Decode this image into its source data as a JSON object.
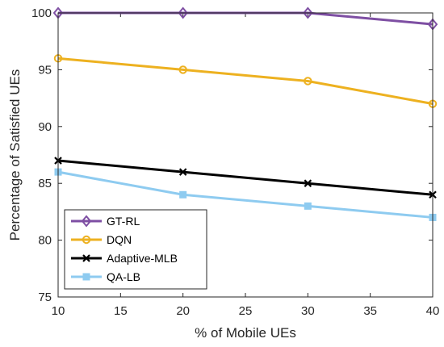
{
  "chart_data": {
    "type": "line",
    "xlabel": "% of Mobile UEs",
    "ylabel": "Percentage of Satisfied UEs",
    "x": [
      10,
      20,
      30,
      40
    ],
    "xlim": [
      10,
      40
    ],
    "ylim": [
      75,
      100
    ],
    "xticks": [
      "10",
      "15",
      "20",
      "25",
      "30",
      "35",
      "40"
    ],
    "yticks": [
      "75",
      "80",
      "85",
      "90",
      "95",
      "100"
    ],
    "grid": false,
    "legend_position": "bottom-left",
    "series": [
      {
        "name": "GT-RL",
        "values": [
          100,
          100,
          100,
          99
        ],
        "color": "#7e4fa3",
        "marker": "diamond"
      },
      {
        "name": "DQN",
        "values": [
          96,
          95,
          94,
          92
        ],
        "color": "#edb120",
        "marker": "circle"
      },
      {
        "name": "Adaptive-MLB",
        "values": [
          87,
          86,
          85,
          84
        ],
        "color": "#000000",
        "marker": "x"
      },
      {
        "name": "QA-LB",
        "values": [
          86,
          84,
          83,
          82
        ],
        "color": "#8ecbf0",
        "marker": "square"
      }
    ]
  }
}
